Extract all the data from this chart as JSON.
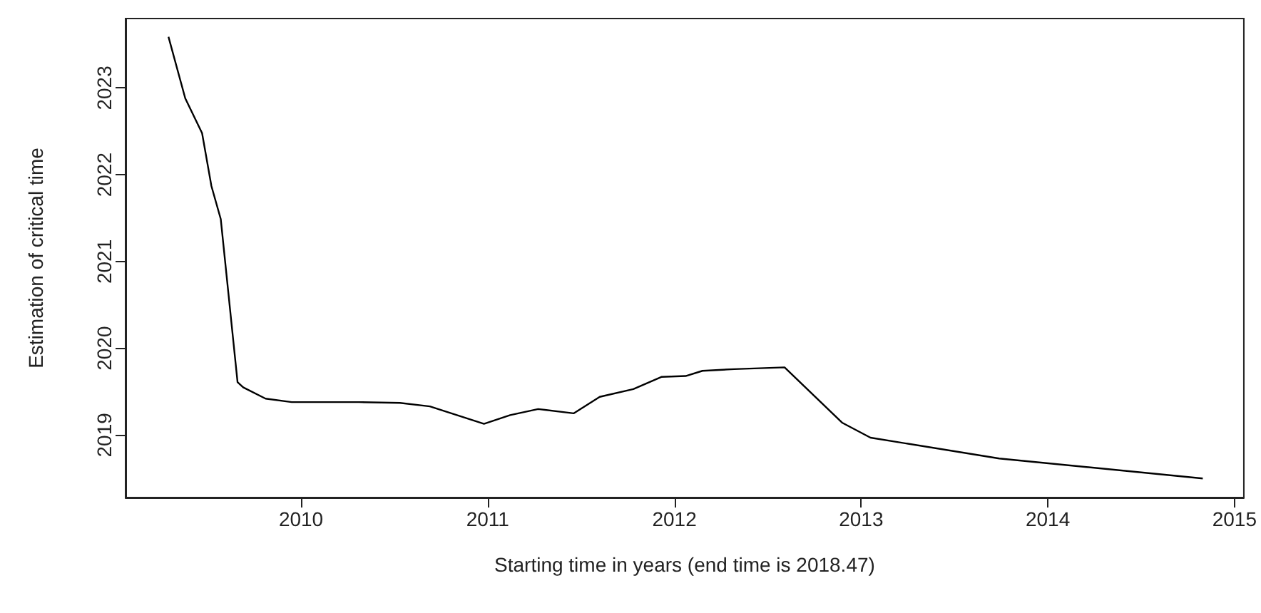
{
  "chart_data": {
    "type": "line",
    "xlabel": "Starting time in years (end time is 2018.47)",
    "ylabel": "Estimation of critical time",
    "series": [
      {
        "color": "#000000",
        "x": [
          2009.29,
          2009.38,
          2009.47,
          2009.52,
          2009.57,
          2009.66,
          2009.69,
          2009.81,
          2009.95,
          2010.31,
          2010.53,
          2010.69,
          2010.98,
          2011.12,
          2011.27,
          2011.46,
          2011.6,
          2011.78,
          2011.93,
          2012.06,
          2012.15,
          2012.32,
          2012.59,
          2012.9,
          2013.05,
          2013.74,
          2014.83
        ],
        "values": [
          2023.59,
          2022.88,
          2022.48,
          2021.87,
          2021.49,
          2019.61,
          2019.55,
          2019.42,
          2019.38,
          2019.38,
          2019.37,
          2019.33,
          2019.13,
          2019.23,
          2019.3,
          2019.25,
          2019.44,
          2019.53,
          2019.67,
          2019.68,
          2019.74,
          2019.76,
          2019.78,
          2019.14,
          2018.97,
          2018.73,
          2018.5
        ]
      }
    ],
    "xlim": [
      2009.06,
      2015.05
    ],
    "ylim": [
      2018.28,
      2023.8
    ],
    "xticks": [
      2010,
      2011,
      2012,
      2013,
      2014,
      2015
    ],
    "yticks": [
      2019,
      2020,
      2021,
      2022,
      2023
    ],
    "marker": "none",
    "line_style": "solid"
  }
}
